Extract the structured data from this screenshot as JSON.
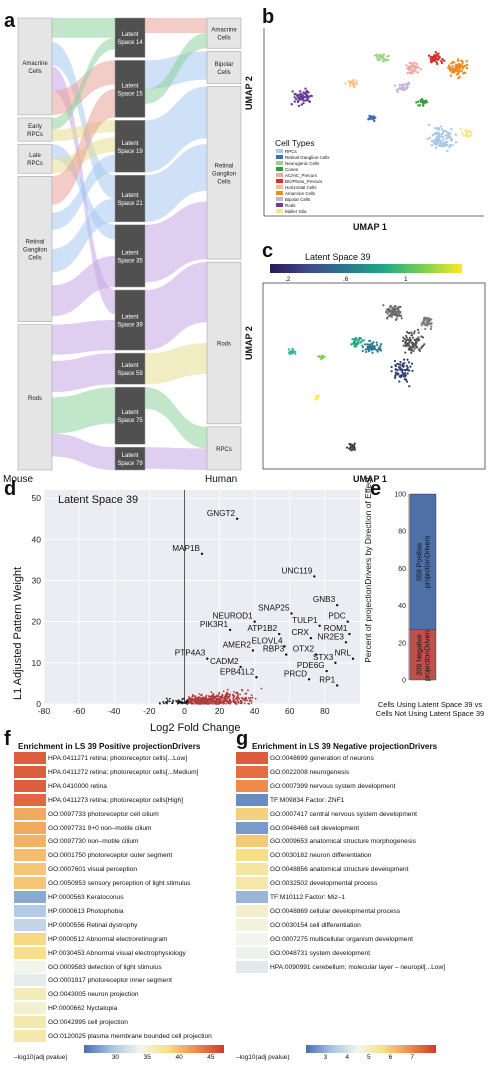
{
  "panels": {
    "a": "a",
    "b": "b",
    "c": "c",
    "d": "d",
    "e": "e",
    "f": "f",
    "g": "g"
  },
  "panel_a": {
    "left_label": "Mouse",
    "right_label": "Human",
    "mouse_groups": [
      {
        "label": "Amacrine Cells",
        "size": 100
      },
      {
        "label": "Early RPCs",
        "size": 24
      },
      {
        "label": "Late RPCs",
        "size": 30
      },
      {
        "label": "Retinal Ganglion Cells",
        "size": 150
      },
      {
        "label": "Rods",
        "size": 150
      }
    ],
    "latent_groups": [
      {
        "label": "Latent Space 14",
        "size": 38
      },
      {
        "label": "Latent Space 15",
        "size": 55
      },
      {
        "label": "Latent Space 19",
        "size": 50
      },
      {
        "label": "Latent Space 21",
        "size": 45
      },
      {
        "label": "Latent Space 35",
        "size": 60
      },
      {
        "label": "Latent Space 39",
        "size": 58
      },
      {
        "label": "Latent Space 59",
        "size": 30
      },
      {
        "label": "Latent Space 75",
        "size": 55
      },
      {
        "label": "Latent Space 79",
        "size": 22
      }
    ],
    "human_groups": [
      {
        "label": "Amacrine Cells",
        "size": 28
      },
      {
        "label": "Bipolar Cells",
        "size": 30
      },
      {
        "label": "Retinal Ganglion Cells",
        "size": 160
      },
      {
        "label": "Rods",
        "size": 150
      },
      {
        "label": "RPCs",
        "size": 40
      }
    ]
  },
  "panel_b": {
    "xlabel": "UMAP 1",
    "ylabel": "UMAP 2",
    "legend_title": "Cell Types",
    "legend": [
      {
        "label": "RPCs",
        "color": "#a9c8e8"
      },
      {
        "label": "Retinal Ganglion Cells",
        "color": "#3b6fb6"
      },
      {
        "label": "Neurogenic Cells",
        "color": "#9fd18b"
      },
      {
        "label": "Cones",
        "color": "#3a9a3a"
      },
      {
        "label": "AC/HC_Precurs",
        "color": "#f4a5a0"
      },
      {
        "label": "BC/Photo_Precurs",
        "color": "#d7302c"
      },
      {
        "label": "Horizontal Cells",
        "color": "#f7c27a"
      },
      {
        "label": "Amacrine Cells",
        "color": "#f08a24"
      },
      {
        "label": "Bipolar Cells",
        "color": "#c7b3d9"
      },
      {
        "label": "Rods",
        "color": "#6a3d9a"
      },
      {
        "label": "Muller Glia",
        "color": "#f5e68a"
      }
    ]
  },
  "panel_c": {
    "title": "Latent Space 39",
    "ticks": [
      ".2",
      ".6",
      "1"
    ],
    "xlabel": "UMAP 1",
    "ylabel": "UMAP 2"
  },
  "chart_data": [
    {
      "type": "scatter",
      "title": "Latent Space 39",
      "xlabel": "Log2 Fold Change",
      "ylabel": "L1 Adjusted Pattern Weight",
      "xlim": [
        -80,
        100
      ],
      "ylim": [
        0,
        52
      ],
      "xticks": [
        -80,
        -60,
        -40,
        -20,
        0,
        20,
        40,
        60,
        80
      ],
      "yticks": [
        0,
        10,
        20,
        30,
        40,
        50
      ],
      "labeled_points": [
        {
          "label": "GNGT2",
          "x": 30,
          "y": 45
        },
        {
          "label": "MAP1B",
          "x": 10,
          "y": 36.5
        },
        {
          "label": "UNC119",
          "x": 74,
          "y": 31
        },
        {
          "label": "GNB3",
          "x": 87,
          "y": 24
        },
        {
          "label": "SNAP25",
          "x": 61,
          "y": 22
        },
        {
          "label": "NEUROD1",
          "x": 40,
          "y": 20
        },
        {
          "label": "PDC",
          "x": 93,
          "y": 20
        },
        {
          "label": "TULP1",
          "x": 77,
          "y": 19
        },
        {
          "label": "PIK3R1",
          "x": 26,
          "y": 18
        },
        {
          "label": "ATP1B2",
          "x": 54,
          "y": 17
        },
        {
          "label": "ROM1",
          "x": 94,
          "y": 17
        },
        {
          "label": "CRX",
          "x": 72,
          "y": 16
        },
        {
          "label": "NR2E3",
          "x": 92,
          "y": 15
        },
        {
          "label": "ELOVL4",
          "x": 57,
          "y": 14
        },
        {
          "label": "AMER2",
          "x": 39,
          "y": 13
        },
        {
          "label": "RBP3",
          "x": 58,
          "y": 12
        },
        {
          "label": "OTX2",
          "x": 75,
          "y": 12
        },
        {
          "label": "NRL",
          "x": 96,
          "y": 11
        },
        {
          "label": "PTP4A3",
          "x": 13,
          "y": 11
        },
        {
          "label": "STX3",
          "x": 86,
          "y": 10
        },
        {
          "label": "CADM2",
          "x": 32,
          "y": 9
        },
        {
          "label": "PDE6G",
          "x": 81,
          "y": 8
        },
        {
          "label": "EPB41L2",
          "x": 41,
          "y": 6.5
        },
        {
          "label": "PRCD",
          "x": 71,
          "y": 6
        },
        {
          "label": "RP1",
          "x": 87,
          "y": 4.5
        }
      ]
    },
    {
      "type": "bar",
      "title": "",
      "ylabel": "Percent of projectionDrivers by Direction of Effect",
      "xlabel": "Cells Using Latent Space 39 vs Cells Not Using Latent Space 39",
      "ylim": [
        0,
        100
      ],
      "yticks": [
        0,
        20,
        40,
        60,
        80,
        100
      ],
      "series": [
        {
          "name": "209 Negative projectionDrivers",
          "values": [
            27
          ],
          "color": "#c0504d"
        },
        {
          "name": "559 Positive projectionDrivers",
          "values": [
            73
          ],
          "color": "#4e6fa8"
        }
      ]
    },
    {
      "type": "heatmap",
      "title": "Enrichment in LS 39 Positive projectionDrivers",
      "colorbar_label": "–log10(adj pvalue)",
      "colorbar_ticks": [
        30,
        35,
        40,
        45
      ],
      "rows": [
        {
          "label": "HPA:0411271 retina; photoreceptor cells[...Low]",
          "value": 45
        },
        {
          "label": "HPA:0411272 retina; photoreceptor cells[...Medium]",
          "value": 45
        },
        {
          "label": "HPA:0410000 retina",
          "value": 45
        },
        {
          "label": "HPA:0411273 retina; photoreceptor cells[High]",
          "value": 44.5
        },
        {
          "label": "GO:0097733 photoreceptor cell cilium",
          "value": 41
        },
        {
          "label": "GO:0097731 9+0 non–motile cilium",
          "value": 41
        },
        {
          "label": "GO:0097730 non–motile cilium",
          "value": 40.5
        },
        {
          "label": "GO:0001750 photoreceptor outer segment",
          "value": 40
        },
        {
          "label": "GO:0007601 visual perception",
          "value": 39.5
        },
        {
          "label": "GO:0050953 sensory perception of light stimulus",
          "value": 39.5
        },
        {
          "label": "HP:0000563 Keratoconus",
          "value": 28
        },
        {
          "label": "HP:0000613 Photophobia",
          "value": 30
        },
        {
          "label": "HP:0000556 Retinal dystrophy",
          "value": 31
        },
        {
          "label": "HP:0000512 Abnormal electroretinogram",
          "value": 38.5
        },
        {
          "label": "HP:0030453 Abnormal visual electrophysiology",
          "value": 38
        },
        {
          "label": "GO:0009583 detection of light stimulus",
          "value": 34
        },
        {
          "label": "GO:0001917 photoreceptor inner segment",
          "value": 33
        },
        {
          "label": "GO:0043005 neuron projection",
          "value": 36
        },
        {
          "label": "HP:0000662 Nyctalopia",
          "value": 35
        },
        {
          "label": "GO:0042995 cell projection",
          "value": 36.5
        },
        {
          "label": "GO:0120025 plasma membrane bounded cell projection",
          "value": 36.5
        }
      ]
    },
    {
      "type": "heatmap",
      "title": "Enrichment in LS 39 Negative projectionDrivers",
      "colorbar_label": "–log10(adj pvalue)",
      "colorbar_ticks": [
        3,
        4,
        5,
        6,
        7
      ],
      "rows": [
        {
          "label": "GO:0048699 generation of neurons",
          "value": 7.5
        },
        {
          "label": "GO:0022008 neurogenesis",
          "value": 7.2
        },
        {
          "label": "GO:0007399 nervous system development",
          "value": 6.8
        },
        {
          "label": "TF:M09834 Factor: ZNF1",
          "value": 2.4
        },
        {
          "label": "GO:0007417 central nervous system development",
          "value": 5.8
        },
        {
          "label": "GO:0048468 cell development",
          "value": 2.6
        },
        {
          "label": "GO:0009653 anatomical structure morphogenesis",
          "value": 5.9
        },
        {
          "label": "GO:0030182 neuron differentiation",
          "value": 5.6
        },
        {
          "label": "GO:0048856 anatomical structure development",
          "value": 5.3
        },
        {
          "label": "GO:0032502 developmental process",
          "value": 5.2
        },
        {
          "label": "TF:M10112 Factor: Miz–1",
          "value": 3.0
        },
        {
          "label": "GO:0048869 cellular developmental process",
          "value": 4.8
        },
        {
          "label": "GO:0030154 cell differentiation",
          "value": 4.6
        },
        {
          "label": "GO:0007275 multicellular organism development",
          "value": 4.4
        },
        {
          "label": "GO:0048731 system development",
          "value": 4.3
        },
        {
          "label": "HPA:0090991 cerebellum; molecular layer – neuropil[...Low]",
          "value": 4.1
        }
      ]
    }
  ]
}
